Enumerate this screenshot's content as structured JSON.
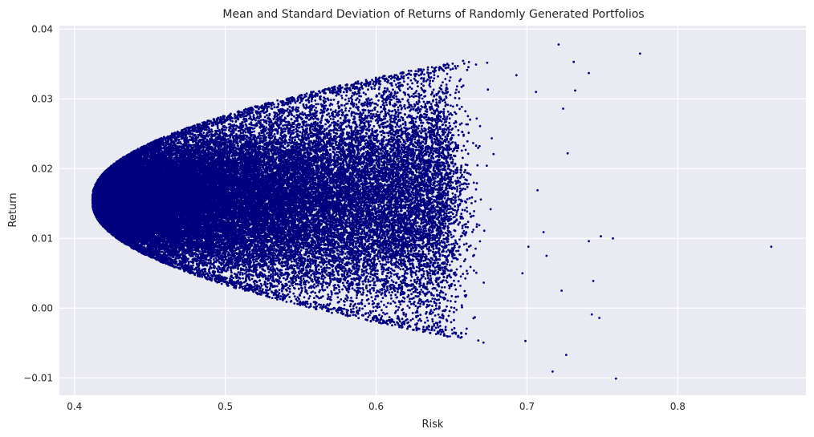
{
  "chart_data": {
    "type": "scatter",
    "title": "Mean and Standard Deviation of Returns of Randomly Generated Portfolios",
    "xlabel": "Risk",
    "ylabel": "Return",
    "xlim": [
      0.39,
      0.885
    ],
    "ylim": [
      -0.0125,
      0.0405
    ],
    "xticks": [
      0.4,
      0.5,
      0.6,
      0.7,
      0.8
    ],
    "xtick_labels": [
      "0.4",
      "0.5",
      "0.6",
      "0.7",
      "0.8"
    ],
    "yticks": [
      -0.01,
      0.0,
      0.01,
      0.02,
      0.03,
      0.04
    ],
    "ytick_labels": [
      "−0.01",
      "0.00",
      "0.01",
      "0.02",
      "0.03",
      "0.04"
    ],
    "grid": true,
    "marker_color": "#00007f",
    "background_color": "#eaeaf2",
    "distribution": {
      "count": 60000,
      "min_risk_vertex": [
        0.412,
        0.0155
      ],
      "outliers": [
        [
          0.862,
          0.0088
        ],
        [
          0.775,
          0.0365
        ],
        [
          0.721,
          0.0378
        ],
        [
          0.731,
          0.0353
        ],
        [
          0.741,
          0.0337
        ],
        [
          0.759,
          -0.0101
        ],
        [
          0.726,
          -0.0067
        ],
        [
          0.717,
          -0.0091
        ],
        [
          0.749,
          0.0103
        ],
        [
          0.757,
          0.01
        ],
        [
          0.741,
          0.0096
        ],
        [
          0.748,
          -0.0014
        ],
        [
          0.743,
          -0.0009
        ],
        [
          0.727,
          0.0222
        ],
        [
          0.732,
          0.0312
        ],
        [
          0.724,
          0.0286
        ],
        [
          0.706,
          0.031
        ],
        [
          0.707,
          0.0169
        ],
        [
          0.711,
          0.0109
        ],
        [
          0.723,
          0.0025
        ],
        [
          0.699,
          -0.0047
        ],
        [
          0.697,
          0.005
        ],
        [
          0.744,
          0.0039
        ],
        [
          0.693,
          0.0334
        ],
        [
          0.713,
          0.0075
        ],
        [
          0.701,
          0.0088
        ]
      ]
    }
  }
}
